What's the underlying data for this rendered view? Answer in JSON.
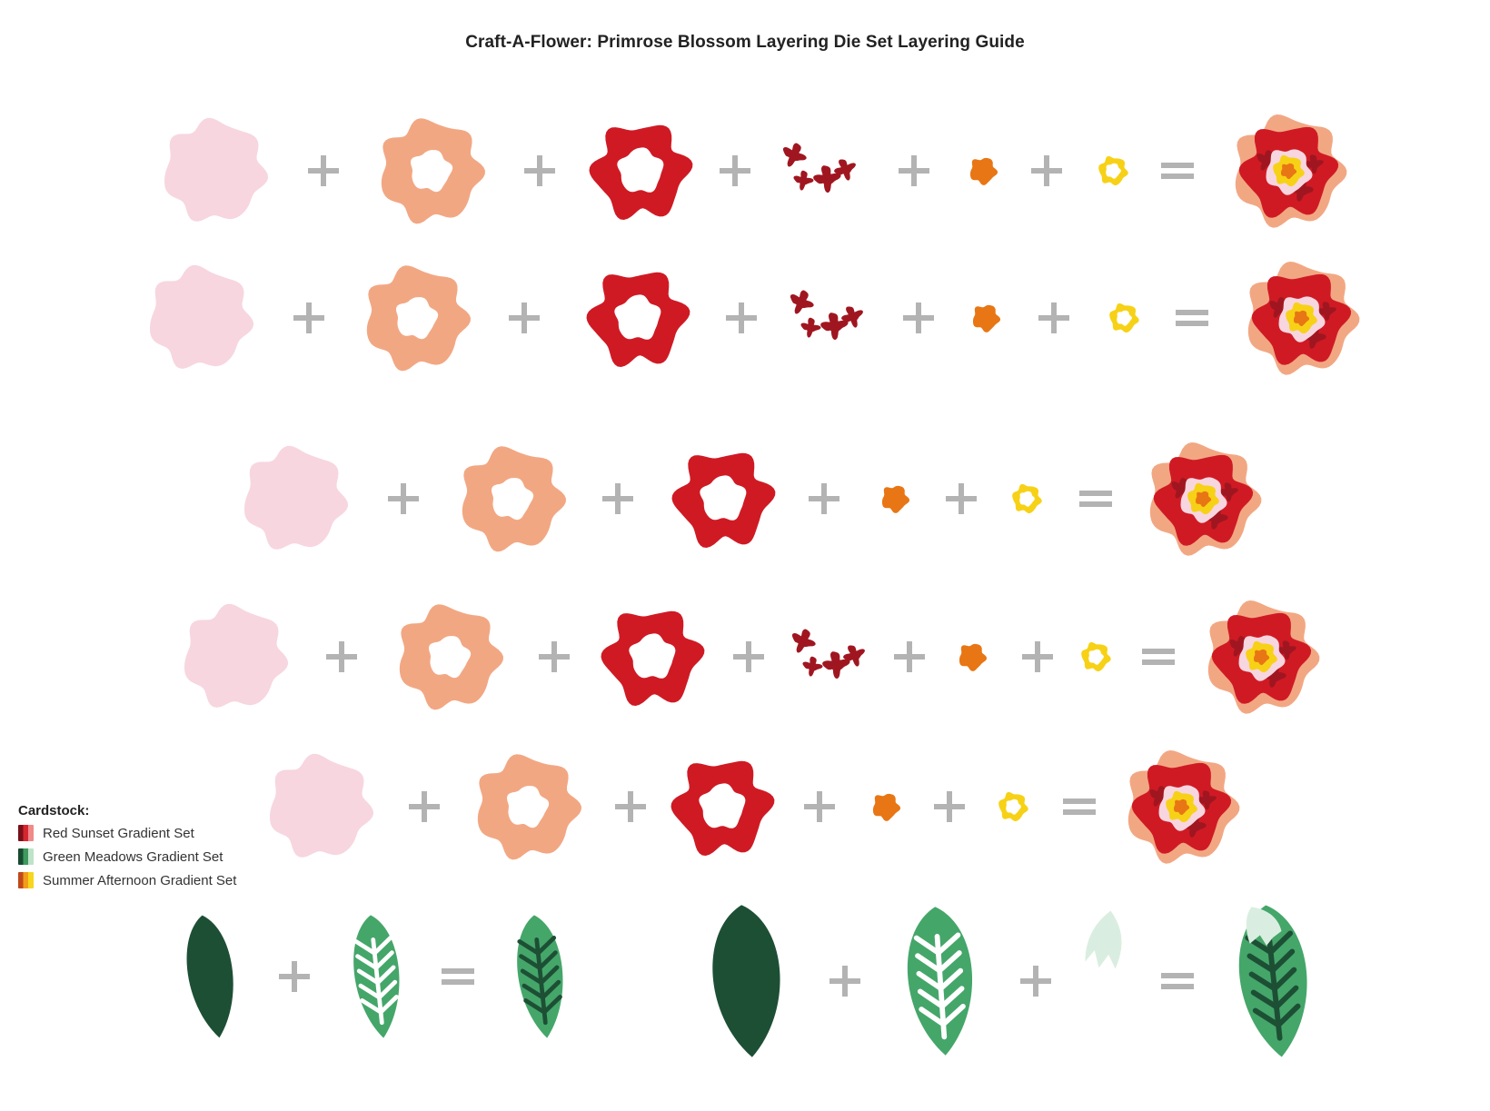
{
  "title": "Craft-A-Flower: Primrose Blossom Layering Die Set Layering Guide",
  "operators": {
    "plus": "+",
    "equals": "="
  },
  "colors": {
    "pink": "#f7d6e0",
    "peach": "#f2a783",
    "red": "#cf1a24",
    "darkRed": "#a01620",
    "orange": "#e87614",
    "yellow": "#f7d116",
    "darkGreen": "#1d4f35",
    "midGreen": "#45a66a",
    "paleGreen": "#d9eee0",
    "white": "#ffffff",
    "operator": "#b3b3b3"
  },
  "legend": {
    "heading": "Cardstock:",
    "items": [
      {
        "label": "Red Sunset Gradient Set",
        "icon": "red-swatch-icon",
        "swatch": [
          "#7a1018",
          "#d62630",
          "#f08a8a"
        ]
      },
      {
        "label": "Green Meadows Gradient Set",
        "icon": "green-swatch-icon",
        "swatch": [
          "#184a30",
          "#3f9a5f",
          "#bfe3c8"
        ]
      },
      {
        "label": "Summer Afternoon Gradient Set",
        "icon": "yellow-swatch-icon",
        "swatch": [
          "#c0481b",
          "#f29c1a",
          "#f7d61d"
        ]
      }
    ]
  },
  "flower_rows": [
    {
      "layers": [
        "pink-base-layer",
        "peach-petal-layer",
        "red-petal-layer",
        "dark-red-detail-layer",
        "orange-center-layer",
        "yellow-ring-layer"
      ],
      "result": "assembled-primrose-1"
    },
    {
      "layers": [
        "pink-base-layer",
        "peach-petal-layer",
        "red-petal-layer",
        "dark-red-detail-layer",
        "orange-center-layer",
        "yellow-ring-layer"
      ],
      "result": "assembled-primrose-2"
    },
    {
      "layers": [
        "pink-base-layer",
        "peach-petal-layer",
        "red-petal-layer",
        "orange-center-layer",
        "yellow-ring-layer"
      ],
      "result": "assembled-primrose-3"
    },
    {
      "layers": [
        "pink-base-layer",
        "peach-petal-layer",
        "red-petal-layer",
        "dark-red-detail-layer",
        "orange-center-layer",
        "yellow-ring-layer"
      ],
      "result": "assembled-primrose-4"
    },
    {
      "layers": [
        "pink-base-layer",
        "peach-petal-layer",
        "red-petal-layer",
        "orange-center-layer",
        "yellow-ring-layer"
      ],
      "result": "assembled-primrose-5"
    }
  ],
  "leaf_groups": [
    {
      "layers": [
        "dark-green-leaf-base",
        "green-veined-leaf-layer"
      ],
      "result": "assembled-small-leaf"
    },
    {
      "layers": [
        "dark-green-leaf-base",
        "green-veined-leaf-layer",
        "pale-green-tip-layer"
      ],
      "result": "assembled-large-leaf"
    }
  ]
}
